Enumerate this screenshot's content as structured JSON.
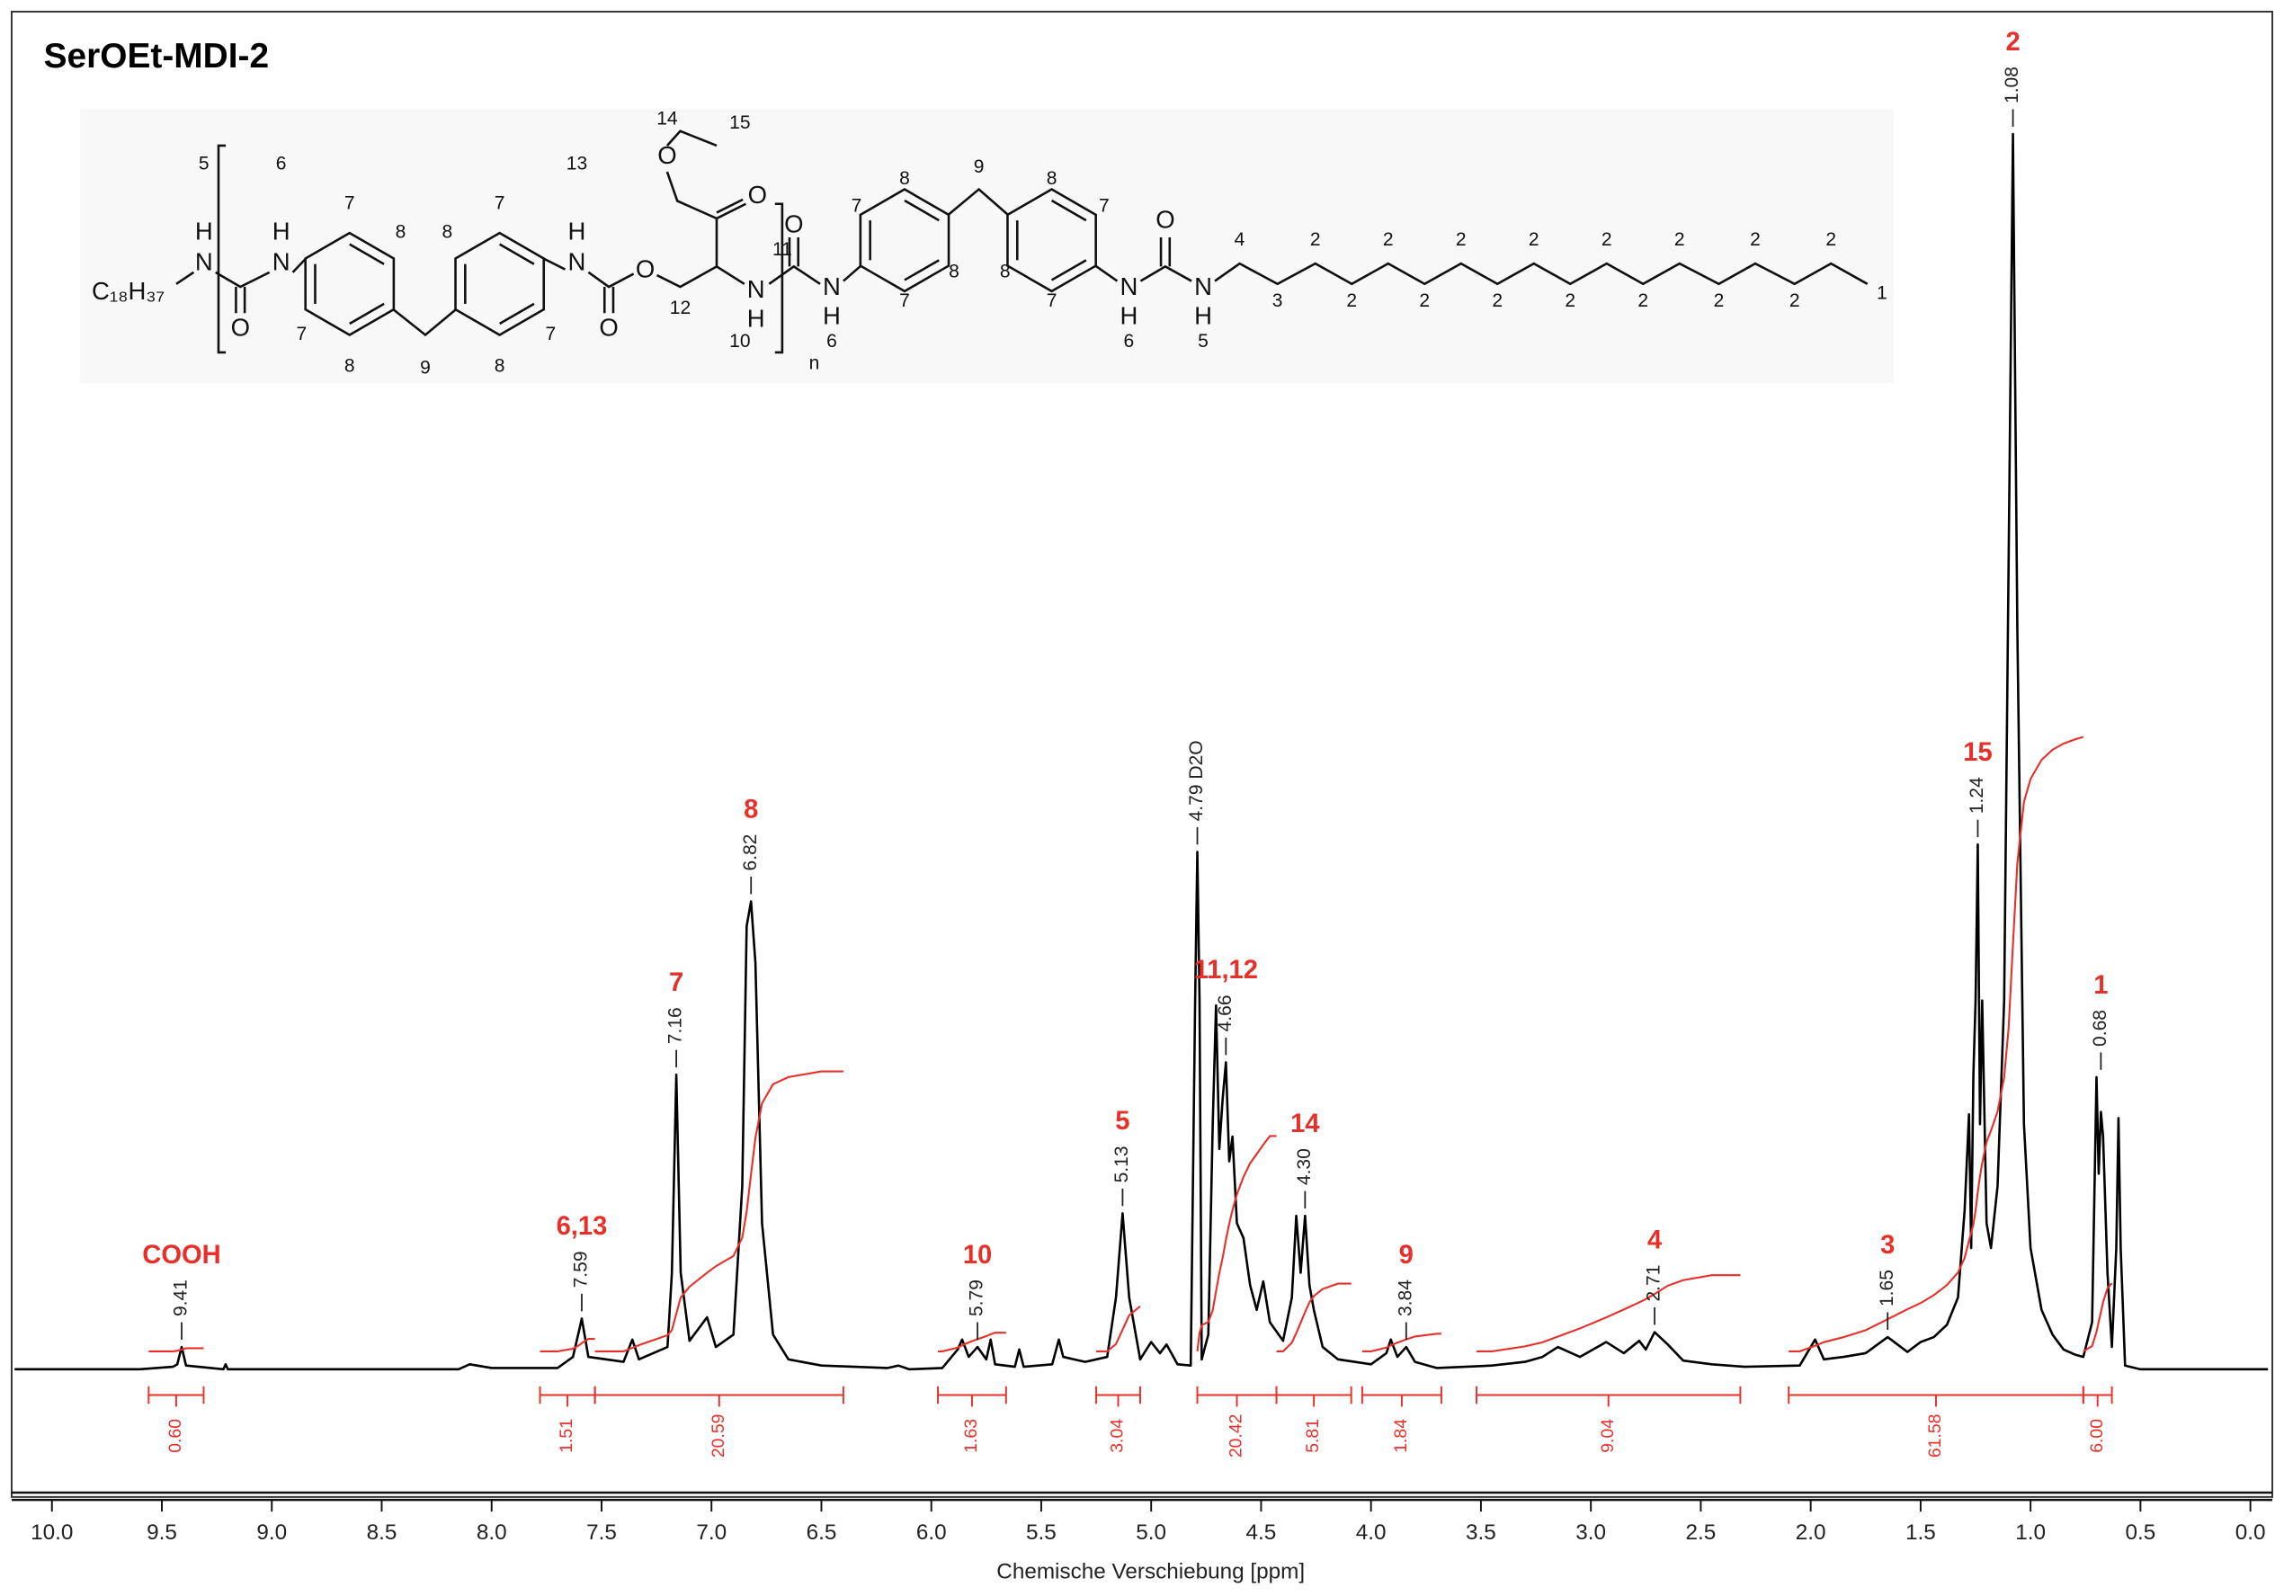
{
  "chart_data": {
    "type": "spectrum",
    "title": "SerOEt-MDI-2",
    "xlabel": "Chemische Verschiebung [ppm]",
    "xlim": [
      10.17,
      -0.08
    ],
    "ylim": [
      0,
      100
    ],
    "xticks": [
      {
        "value": 10,
        "label": "10.0"
      },
      9.5,
      {
        "value": 9,
        "label": "9.0"
      },
      8.5,
      {
        "value": 8,
        "label": "8.0"
      },
      7.5,
      {
        "value": 7,
        "label": "7.0"
      },
      6.5,
      {
        "value": 6,
        "label": "6.0"
      },
      5.5,
      {
        "value": 5,
        "label": "5.0"
      },
      4.5,
      {
        "value": 4,
        "label": "4.0"
      },
      3.5,
      {
        "value": 3,
        "label": "3.0"
      },
      2.5,
      {
        "value": 2,
        "label": "2.0"
      },
      1.5,
      {
        "value": 1,
        "label": "1.0"
      },
      0.5,
      {
        "value": 0,
        "label": "0.0"
      }
    ],
    "color": "#000000",
    "integral_color": "#e8302a",
    "assignment_color": "#e8302a",
    "x": [
      10.17,
      9.6,
      9.45,
      9.43,
      9.41,
      9.39,
      9.22,
      9.21,
      9.2,
      8.15,
      8.1,
      8.0,
      7.7,
      7.63,
      7.6,
      7.59,
      7.56,
      7.4,
      7.36,
      7.33,
      7.2,
      7.18,
      7.16,
      7.14,
      7.1,
      7.02,
      6.98,
      6.9,
      6.86,
      6.84,
      6.82,
      6.8,
      6.77,
      6.72,
      6.65,
      6.5,
      6.2,
      6.15,
      6.1,
      5.95,
      5.88,
      5.86,
      5.83,
      5.79,
      5.75,
      5.73,
      5.71,
      5.62,
      5.6,
      5.58,
      5.45,
      5.42,
      5.4,
      5.35,
      5.3,
      5.2,
      5.16,
      5.13,
      5.1,
      5.05,
      5.0,
      4.96,
      4.93,
      4.88,
      4.82,
      4.8,
      4.79,
      4.78,
      4.77,
      4.74,
      4.72,
      4.705,
      4.69,
      4.675,
      4.66,
      4.645,
      4.63,
      4.61,
      4.58,
      4.55,
      4.52,
      4.49,
      4.46,
      4.4,
      4.36,
      4.34,
      4.32,
      4.3,
      4.28,
      4.26,
      4.22,
      4.15,
      4.0,
      3.93,
      3.91,
      3.88,
      3.84,
      3.8,
      3.7,
      3.45,
      3.3,
      3.22,
      3.15,
      3.05,
      2.93,
      2.85,
      2.78,
      2.75,
      2.71,
      2.65,
      2.58,
      2.45,
      2.3,
      2.05,
      1.98,
      1.94,
      1.85,
      1.75,
      1.65,
      1.56,
      1.5,
      1.44,
      1.38,
      1.33,
      1.3,
      1.28,
      1.27,
      1.26,
      1.25,
      1.24,
      1.23,
      1.22,
      1.2,
      1.18,
      1.15,
      1.12,
      1.1,
      1.08,
      1.06,
      1.03,
      1.0,
      0.95,
      0.9,
      0.85,
      0.8,
      0.76,
      0.72,
      0.7,
      0.69,
      0.68,
      0.67,
      0.65,
      0.63,
      0.61,
      0.6,
      0.59,
      0.57,
      0.5,
      -0.08
    ],
    "values": [
      0.2,
      0.2,
      0.4,
      0.6,
      2.0,
      0.5,
      0.2,
      0.6,
      0.2,
      0.2,
      0.6,
      0.3,
      0.3,
      1.2,
      3.5,
      4.3,
      1.2,
      0.8,
      2.6,
      1.0,
      2.0,
      8,
      24,
      8,
      2.5,
      4.4,
      2.0,
      3,
      15,
      36,
      38,
      33,
      12,
      3,
      1.0,
      0.5,
      0.3,
      0.5,
      0.2,
      0.3,
      1.8,
      2.6,
      1.2,
      2.0,
      1.0,
      2.6,
      0.6,
      0.4,
      1.8,
      0.4,
      0.6,
      2.6,
      1.2,
      1.0,
      0.8,
      1.2,
      6,
      12.8,
      6,
      1.0,
      2.4,
      1.5,
      2.2,
      0.6,
      0.5,
      30,
      42,
      30,
      1.0,
      3,
      20,
      29.6,
      18,
      22,
      25,
      17,
      19,
      12,
      10.8,
      7,
      5,
      7.3,
      4,
      2.5,
      6,
      12.6,
      8,
      12.6,
      7,
      5,
      2,
      1.0,
      0.6,
      1.5,
      2.6,
      1.2,
      2.0,
      0.8,
      0.3,
      0.5,
      0.8,
      1.2,
      2.0,
      1.2,
      2.4,
      1.5,
      2.5,
      1.8,
      3.2,
      2.2,
      0.9,
      0.6,
      0.4,
      0.5,
      2.6,
      1.0,
      1.2,
      1.5,
      2.8,
      1.6,
      2.4,
      2.8,
      3.8,
      6,
      13,
      20.8,
      10,
      24,
      30,
      42.6,
      20,
      30,
      12,
      10,
      15,
      30,
      65,
      100,
      60,
      20,
      10,
      5,
      3,
      1.8,
      1.4,
      1.2,
      4,
      23.8,
      16,
      21,
      19,
      8,
      2,
      10,
      20.5,
      10,
      0.5,
      0.2,
      0.2
    ],
    "peaks": {
      "x": [
        9.41,
        7.59,
        7.16,
        6.82,
        5.79,
        5.13,
        {
          "value": 4.79,
          "label": "4.79 D2O"
        },
        4.66,
        {
          "value": 4.3,
          "label": "4.30"
        },
        3.84,
        2.71,
        1.65,
        1.24,
        1.08,
        0.68
      ],
      "assignments": [
        "COOH",
        "6,13",
        "7",
        "8",
        "10",
        "5",
        null,
        "11,12",
        "14",
        "9",
        "4",
        "3",
        "15",
        "2",
        "1"
      ]
    },
    "integrals": {
      "ranges": [
        [
          9.56,
          9.31
        ],
        [
          7.78,
          7.53
        ],
        [
          7.53,
          6.4
        ],
        [
          5.97,
          5.66
        ],
        [
          5.25,
          5.05
        ],
        [
          4.79,
          4.43
        ],
        [
          4.43,
          4.09
        ],
        [
          4.04,
          3.68
        ],
        [
          3.52,
          2.32
        ],
        [
          2.1,
          0.76
        ],
        [
          0.76,
          0.63
        ]
      ],
      "values": [
        0.6,
        1.51,
        20.59,
        1.63,
        3.04,
        20.42,
        5.81,
        1.84,
        9.04,
        61.58,
        6.0
      ],
      "value_labels": [
        "0.60",
        "1.51",
        "20.59",
        "1.63",
        "3.04",
        "20.42",
        "5.81",
        "1.84",
        "9.04",
        "61.58",
        "6.00"
      ]
    }
  },
  "structure_labels": [
    "C₁₈H₃₇",
    "5",
    "6",
    "H",
    "N",
    "H",
    "N",
    "O",
    "7",
    "8",
    "7",
    "8",
    "9",
    "8",
    "7",
    "7",
    "8",
    "13",
    "H",
    "N",
    "O",
    "O",
    "12",
    "11",
    "N",
    "H",
    "10",
    "n",
    "O",
    "O",
    "14",
    "15",
    "O",
    "N",
    "H",
    "6",
    "7",
    "8",
    "8",
    "7",
    "9",
    "8",
    "7",
    "8",
    "7",
    "N",
    "H",
    "6",
    "O",
    "N",
    "H",
    "5",
    "4",
    "3",
    "2",
    "2",
    "2",
    "2",
    "2",
    "2",
    "2",
    "2",
    "2",
    "2",
    "2",
    "2",
    "2",
    "2",
    "2",
    "1"
  ]
}
